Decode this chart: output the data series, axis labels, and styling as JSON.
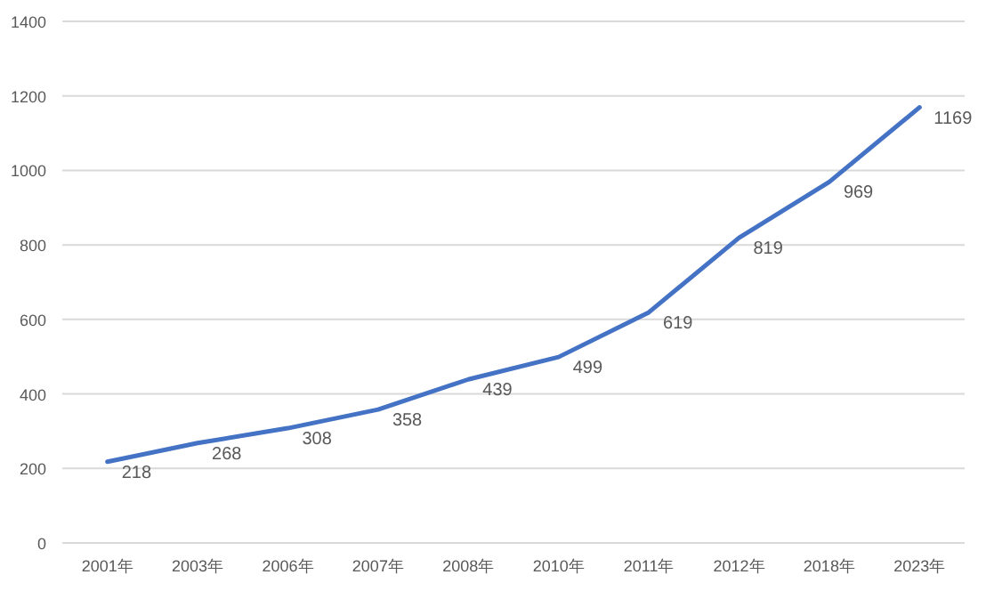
{
  "chart_data": {
    "type": "line",
    "categories": [
      "2001年",
      "2003年",
      "2006年",
      "2007年",
      "2008年",
      "2010年",
      "2011年",
      "2012年",
      "2018年",
      "2023年"
    ],
    "series": [
      {
        "color": "#4472c4",
        "values": [
          218,
          268,
          308,
          358,
          439,
          499,
          619,
          819,
          969,
          1169
        ]
      }
    ],
    "ylim": [
      0,
      1400
    ],
    "yticks": [
      0,
      200,
      400,
      600,
      800,
      1000,
      1200,
      1400
    ],
    "grid": "y",
    "data_labels": true,
    "marker": "none",
    "line_style": "solid"
  }
}
